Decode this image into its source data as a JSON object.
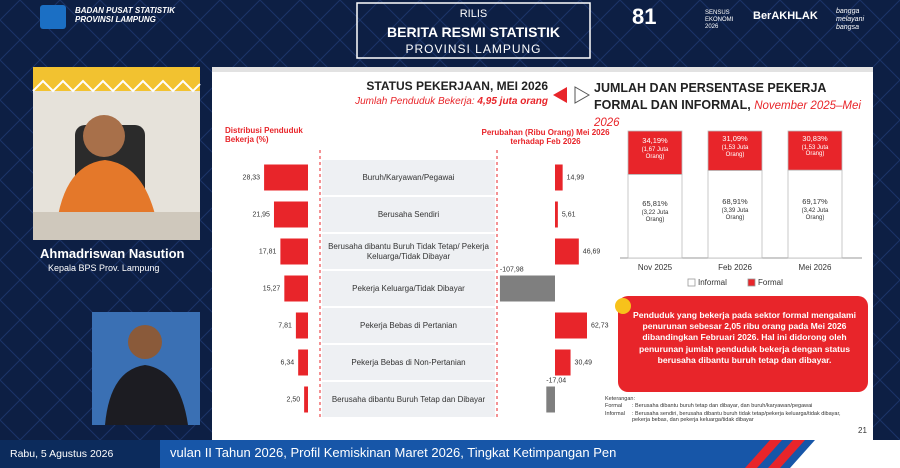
{
  "header": {
    "org": [
      "BADAN PUSAT STATISTIK",
      "PROVINSI LAMPUNG"
    ],
    "release": [
      "RILIS",
      "BERITA RESMI STATISTIK",
      "PROVINSI LAMPUNG"
    ],
    "logos": [
      "81",
      "SENSUS EKONOMI 2026",
      "BerAKHLAK",
      "bangga melayani bangsa"
    ]
  },
  "speaker": {
    "name": "Ahmadriswan Nasution",
    "title": "Kepala BPS Prov. Lampung"
  },
  "chart_data": [
    {
      "type": "bar",
      "orientation": "horizontal",
      "title": "STATUS PEKERJAAN, MEI 2026",
      "subtitle": "Jumlah Penduduk Bekerja:",
      "subtitle_value": "4,95 juta orang",
      "categories": [
        "Buruh/Karyawan/Pegawai",
        "Berusaha Sendiri",
        "Berusaha dibantu Buruh Tidak Tetap/ Pekerja Keluarga/Tidak Dibayar",
        "Pekerja Keluarga/Tidak Dibayar",
        "Pekerja Bebas di Pertanian",
        "Pekerja Bebas di Non-Pertanian",
        "Berusaha dibantu Buruh Tetap dan Dibayar"
      ],
      "series": [
        {
          "name": "Distribusi Penduduk Bekerja (%)",
          "color": "#e8252a",
          "values": [
            28.33,
            21.95,
            17.81,
            15.27,
            7.81,
            6.34,
            2.5
          ],
          "value_labels": [
            "28,33",
            "21,95",
            "17,81",
            "15,27",
            "7,81",
            "6,34",
            "2,50"
          ]
        },
        {
          "name": "Perubahan (Ribu Orang) Mei 2026 terhadap Feb 2026",
          "color": "#e8252a",
          "negative_color": "#7f7f7f",
          "values": [
            14.99,
            5.61,
            46.69,
            -107.98,
            62.73,
            30.49,
            -17.04
          ],
          "value_labels": [
            "14,99",
            "5,61",
            "46,69",
            "-107,98",
            "62,73",
            "30,49",
            "-17,04"
          ]
        }
      ]
    },
    {
      "type": "stacked-bar",
      "title": "JUMLAH DAN PERSENTASE PEKERJA FORMAL DAN INFORMAL,",
      "subtitle": "November 2025–Mei 2026",
      "categories": [
        "Nov 2025",
        "Feb 2026",
        "Mei 2026"
      ],
      "ylim": [
        0,
        100
      ],
      "legend": "bottom",
      "series": [
        {
          "name": "Informal",
          "color": "#ffffff",
          "values": [
            65.81,
            68.91,
            69.17
          ],
          "value_labels": [
            "65,81%",
            "68,91%",
            "69,17%"
          ],
          "count_labels": [
            "(3,22 Juta Orang)",
            "(3,39 Juta Orang)",
            "(3,42 Juta Orang)"
          ]
        },
        {
          "name": "Formal",
          "color": "#e8252a",
          "values": [
            34.19,
            31.09,
            30.83
          ],
          "value_labels": [
            "34,19%",
            "31,09%",
            "30,83%"
          ],
          "count_labels": [
            "(1,67 Juta Orang)",
            "(1,53 Juta Orang)",
            "(1,53 Juta Orang)"
          ]
        }
      ]
    }
  ],
  "callout": "Penduduk yang bekerja pada sektor formal mengalami penurunan sebesar 2,05 ribu orang pada Mei 2026 dibandingkan Februari 2026. Hal ini didorong oleh penurunan jumlah penduduk bekerja dengan status berusaha dibantu buruh tetap dan dibayar.",
  "notes": {
    "title": "Keterangan:",
    "items": [
      {
        "term": "Formal",
        "text": ": Berusaha dibantu buruh tetap dan dibayar, dan buruh/karyawan/pegawai"
      },
      {
        "term": "Informal",
        "text": ": Berusaha sendiri, berusaha dibantu buruh tidak tetap/pekerja keluarga/tidak dibayar, pekerja bebas, dan pekerja keluarga/tidak dibayar"
      }
    ]
  },
  "page_number": "21",
  "footer": {
    "date": "Rabu, 5 Agustus 2026",
    "ticker": "vulan II Tahun 2026, Profil Kemiskinan Maret 2026, Tingkat Ketimpangan Pen"
  }
}
